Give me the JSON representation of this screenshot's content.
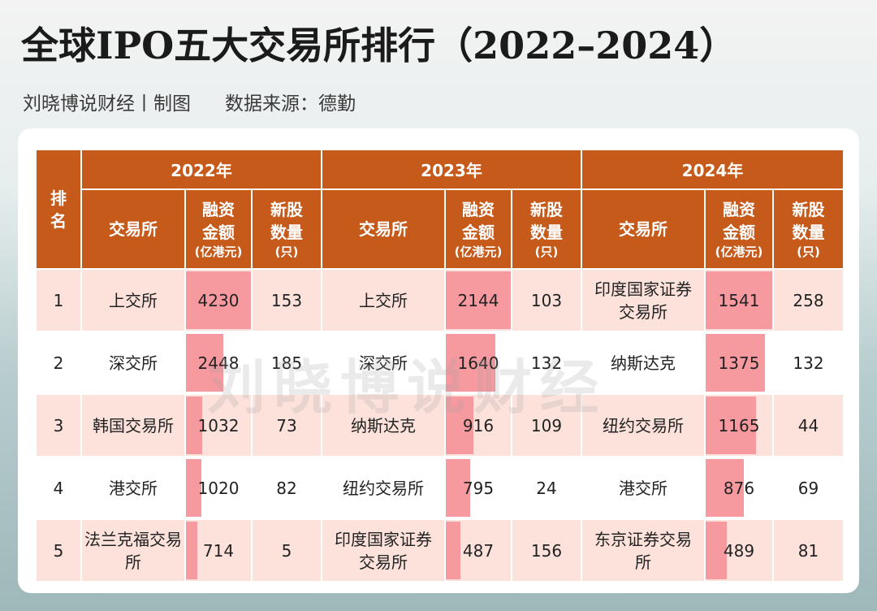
{
  "title": "全球IPO五大交易所排行（2022–2024）",
  "subtitle": {
    "author": "刘晓博说财经丨制图",
    "source": "数据来源：德勤"
  },
  "table": {
    "rank_header": "排名",
    "years": [
      "2022年",
      "2023年",
      "2024年"
    ],
    "col_exchange": "交易所",
    "col_amount": "融资金额",
    "col_amount_unit": "(亿港元)",
    "col_count": "新股数量",
    "col_count_unit": "(只)",
    "rows": [
      {
        "rank": "1",
        "y2022": {
          "exchange": "上交所",
          "amount": "4230",
          "count": "153",
          "bar": 1.0
        },
        "y2023": {
          "exchange": "上交所",
          "amount": "2144",
          "count": "103",
          "bar": 1.0
        },
        "y2024": {
          "exchange": "印度国家证券交易所",
          "amount": "1541",
          "count": "258",
          "bar": 1.0
        }
      },
      {
        "rank": "2",
        "y2022": {
          "exchange": "深交所",
          "amount": "2448",
          "count": "185",
          "bar": 0.579
        },
        "y2023": {
          "exchange": "深交所",
          "amount": "1640",
          "count": "132",
          "bar": 0.765
        },
        "y2024": {
          "exchange": "纳斯达克",
          "amount": "1375",
          "count": "132",
          "bar": 0.892
        }
      },
      {
        "rank": "3",
        "y2022": {
          "exchange": "韩国交易所",
          "amount": "1032",
          "count": "73",
          "bar": 0.244
        },
        "y2023": {
          "exchange": "纳斯达克",
          "amount": "916",
          "count": "109",
          "bar": 0.427
        },
        "y2024": {
          "exchange": "纽约交易所",
          "amount": "1165",
          "count": "44",
          "bar": 0.756
        }
      },
      {
        "rank": "4",
        "y2022": {
          "exchange": "港交所",
          "amount": "1020",
          "count": "82",
          "bar": 0.241
        },
        "y2023": {
          "exchange": "纽约交易所",
          "amount": "795",
          "count": "24",
          "bar": 0.371
        },
        "y2024": {
          "exchange": "港交所",
          "amount": "876",
          "count": "69",
          "bar": 0.568
        }
      },
      {
        "rank": "5",
        "y2022": {
          "exchange": "法兰克福交易所",
          "amount": "714",
          "count": "5",
          "bar": 0.169
        },
        "y2023": {
          "exchange": "印度国家证券交易所",
          "amount": "487",
          "count": "156",
          "bar": 0.227
        },
        "y2024": {
          "exchange": "东京证券交易所",
          "amount": "489",
          "count": "81",
          "bar": 0.317
        }
      }
    ]
  },
  "watermark": "刘晓博说财经",
  "colors": {
    "header": "#c55a1b",
    "row_alt": "#fde2dc",
    "bar": "#f79aa0"
  }
}
